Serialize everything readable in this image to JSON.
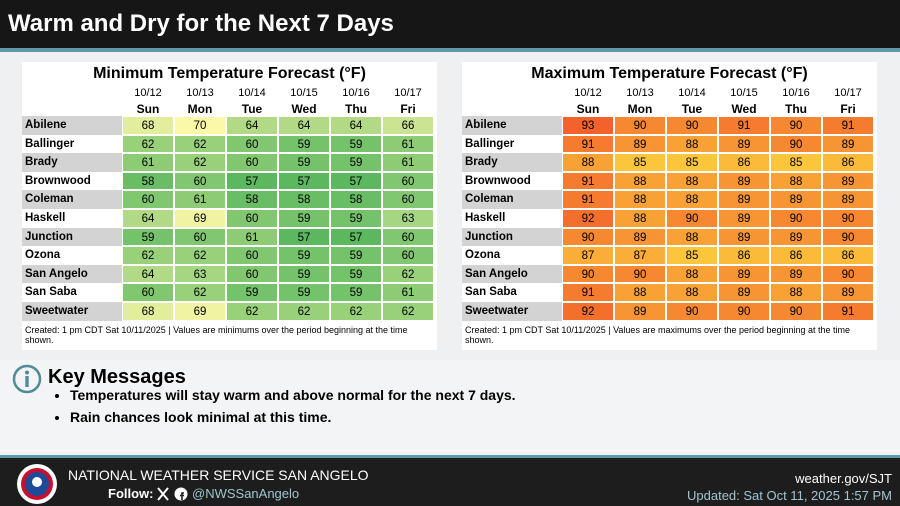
{
  "header": {
    "title": "Warm and Dry for the Next 7 Days"
  },
  "tables": [
    {
      "title": "Minimum Temperature Forecast (°F)",
      "dates": [
        "10/12",
        "10/13",
        "10/14",
        "10/15",
        "10/16",
        "10/17"
      ],
      "days": [
        "Sun",
        "Mon",
        "Tue",
        "Wed",
        "Thu",
        "Fri"
      ],
      "rows": [
        {
          "city": "Abilene",
          "values": [
            68,
            70,
            64,
            64,
            64,
            66
          ]
        },
        {
          "city": "Ballinger",
          "values": [
            62,
            62,
            60,
            59,
            59,
            61
          ]
        },
        {
          "city": "Brady",
          "values": [
            61,
            62,
            60,
            59,
            59,
            61
          ]
        },
        {
          "city": "Brownwood",
          "values": [
            58,
            60,
            57,
            57,
            57,
            60
          ]
        },
        {
          "city": "Coleman",
          "values": [
            60,
            61,
            58,
            58,
            58,
            60
          ]
        },
        {
          "city": "Haskell",
          "values": [
            64,
            69,
            60,
            59,
            59,
            63
          ]
        },
        {
          "city": "Junction",
          "values": [
            59,
            60,
            61,
            57,
            57,
            60
          ]
        },
        {
          "city": "Ozona",
          "values": [
            62,
            62,
            60,
            59,
            59,
            60
          ]
        },
        {
          "city": "San Angelo",
          "values": [
            64,
            63,
            60,
            59,
            59,
            62
          ]
        },
        {
          "city": "San Saba",
          "values": [
            60,
            62,
            59,
            59,
            59,
            61
          ]
        },
        {
          "city": "Sweetwater",
          "values": [
            68,
            69,
            62,
            62,
            62,
            62
          ]
        }
      ],
      "footnote": "Created: 1 pm CDT Sat 10/11/2025  |  Values are minimums over the period beginning at the time shown.",
      "color_low": "#5cb85f",
      "color_high": "#fbf8a8"
    },
    {
      "title": "Maximum Temperature Forecast (°F)",
      "dates": [
        "10/12",
        "10/13",
        "10/14",
        "10/15",
        "10/16",
        "10/17"
      ],
      "days": [
        "Sun",
        "Mon",
        "Tue",
        "Wed",
        "Thu",
        "Fri"
      ],
      "rows": [
        {
          "city": "Abilene",
          "values": [
            93,
            90,
            90,
            91,
            90,
            91
          ]
        },
        {
          "city": "Ballinger",
          "values": [
            91,
            89,
            88,
            89,
            90,
            89
          ]
        },
        {
          "city": "Brady",
          "values": [
            88,
            85,
            85,
            86,
            85,
            86
          ]
        },
        {
          "city": "Brownwood",
          "values": [
            91,
            88,
            88,
            89,
            88,
            89
          ]
        },
        {
          "city": "Coleman",
          "values": [
            91,
            88,
            88,
            89,
            89,
            89
          ]
        },
        {
          "city": "Haskell",
          "values": [
            92,
            88,
            90,
            89,
            90,
            90
          ]
        },
        {
          "city": "Junction",
          "values": [
            90,
            89,
            88,
            89,
            89,
            90
          ]
        },
        {
          "city": "Ozona",
          "values": [
            87,
            87,
            85,
            86,
            86,
            86
          ]
        },
        {
          "city": "San Angelo",
          "values": [
            90,
            90,
            88,
            89,
            89,
            90
          ]
        },
        {
          "city": "San Saba",
          "values": [
            91,
            88,
            88,
            89,
            88,
            89
          ]
        },
        {
          "city": "Sweetwater",
          "values": [
            92,
            89,
            90,
            90,
            90,
            91
          ]
        }
      ],
      "footnote": "Created: 1 pm CDT Sat 10/11/2025  |  Values are maximums over the period beginning at the time shown.",
      "color_low": "#fcc63c",
      "color_high": "#f2622a"
    }
  ],
  "key_messages": {
    "title": "Key Messages",
    "items": [
      "Temperatures will stay warm and above normal for the next 7 days.",
      "Rain chances look minimal at this time."
    ]
  },
  "footer": {
    "office": "NATIONAL WEATHER SERVICE SAN ANGELO",
    "follow": "Follow:",
    "handle": "@NWSSanAngelo",
    "website": "weather.gov/SJT",
    "updated": "Updated: Sat Oct 11, 2025 1:57 PM"
  }
}
